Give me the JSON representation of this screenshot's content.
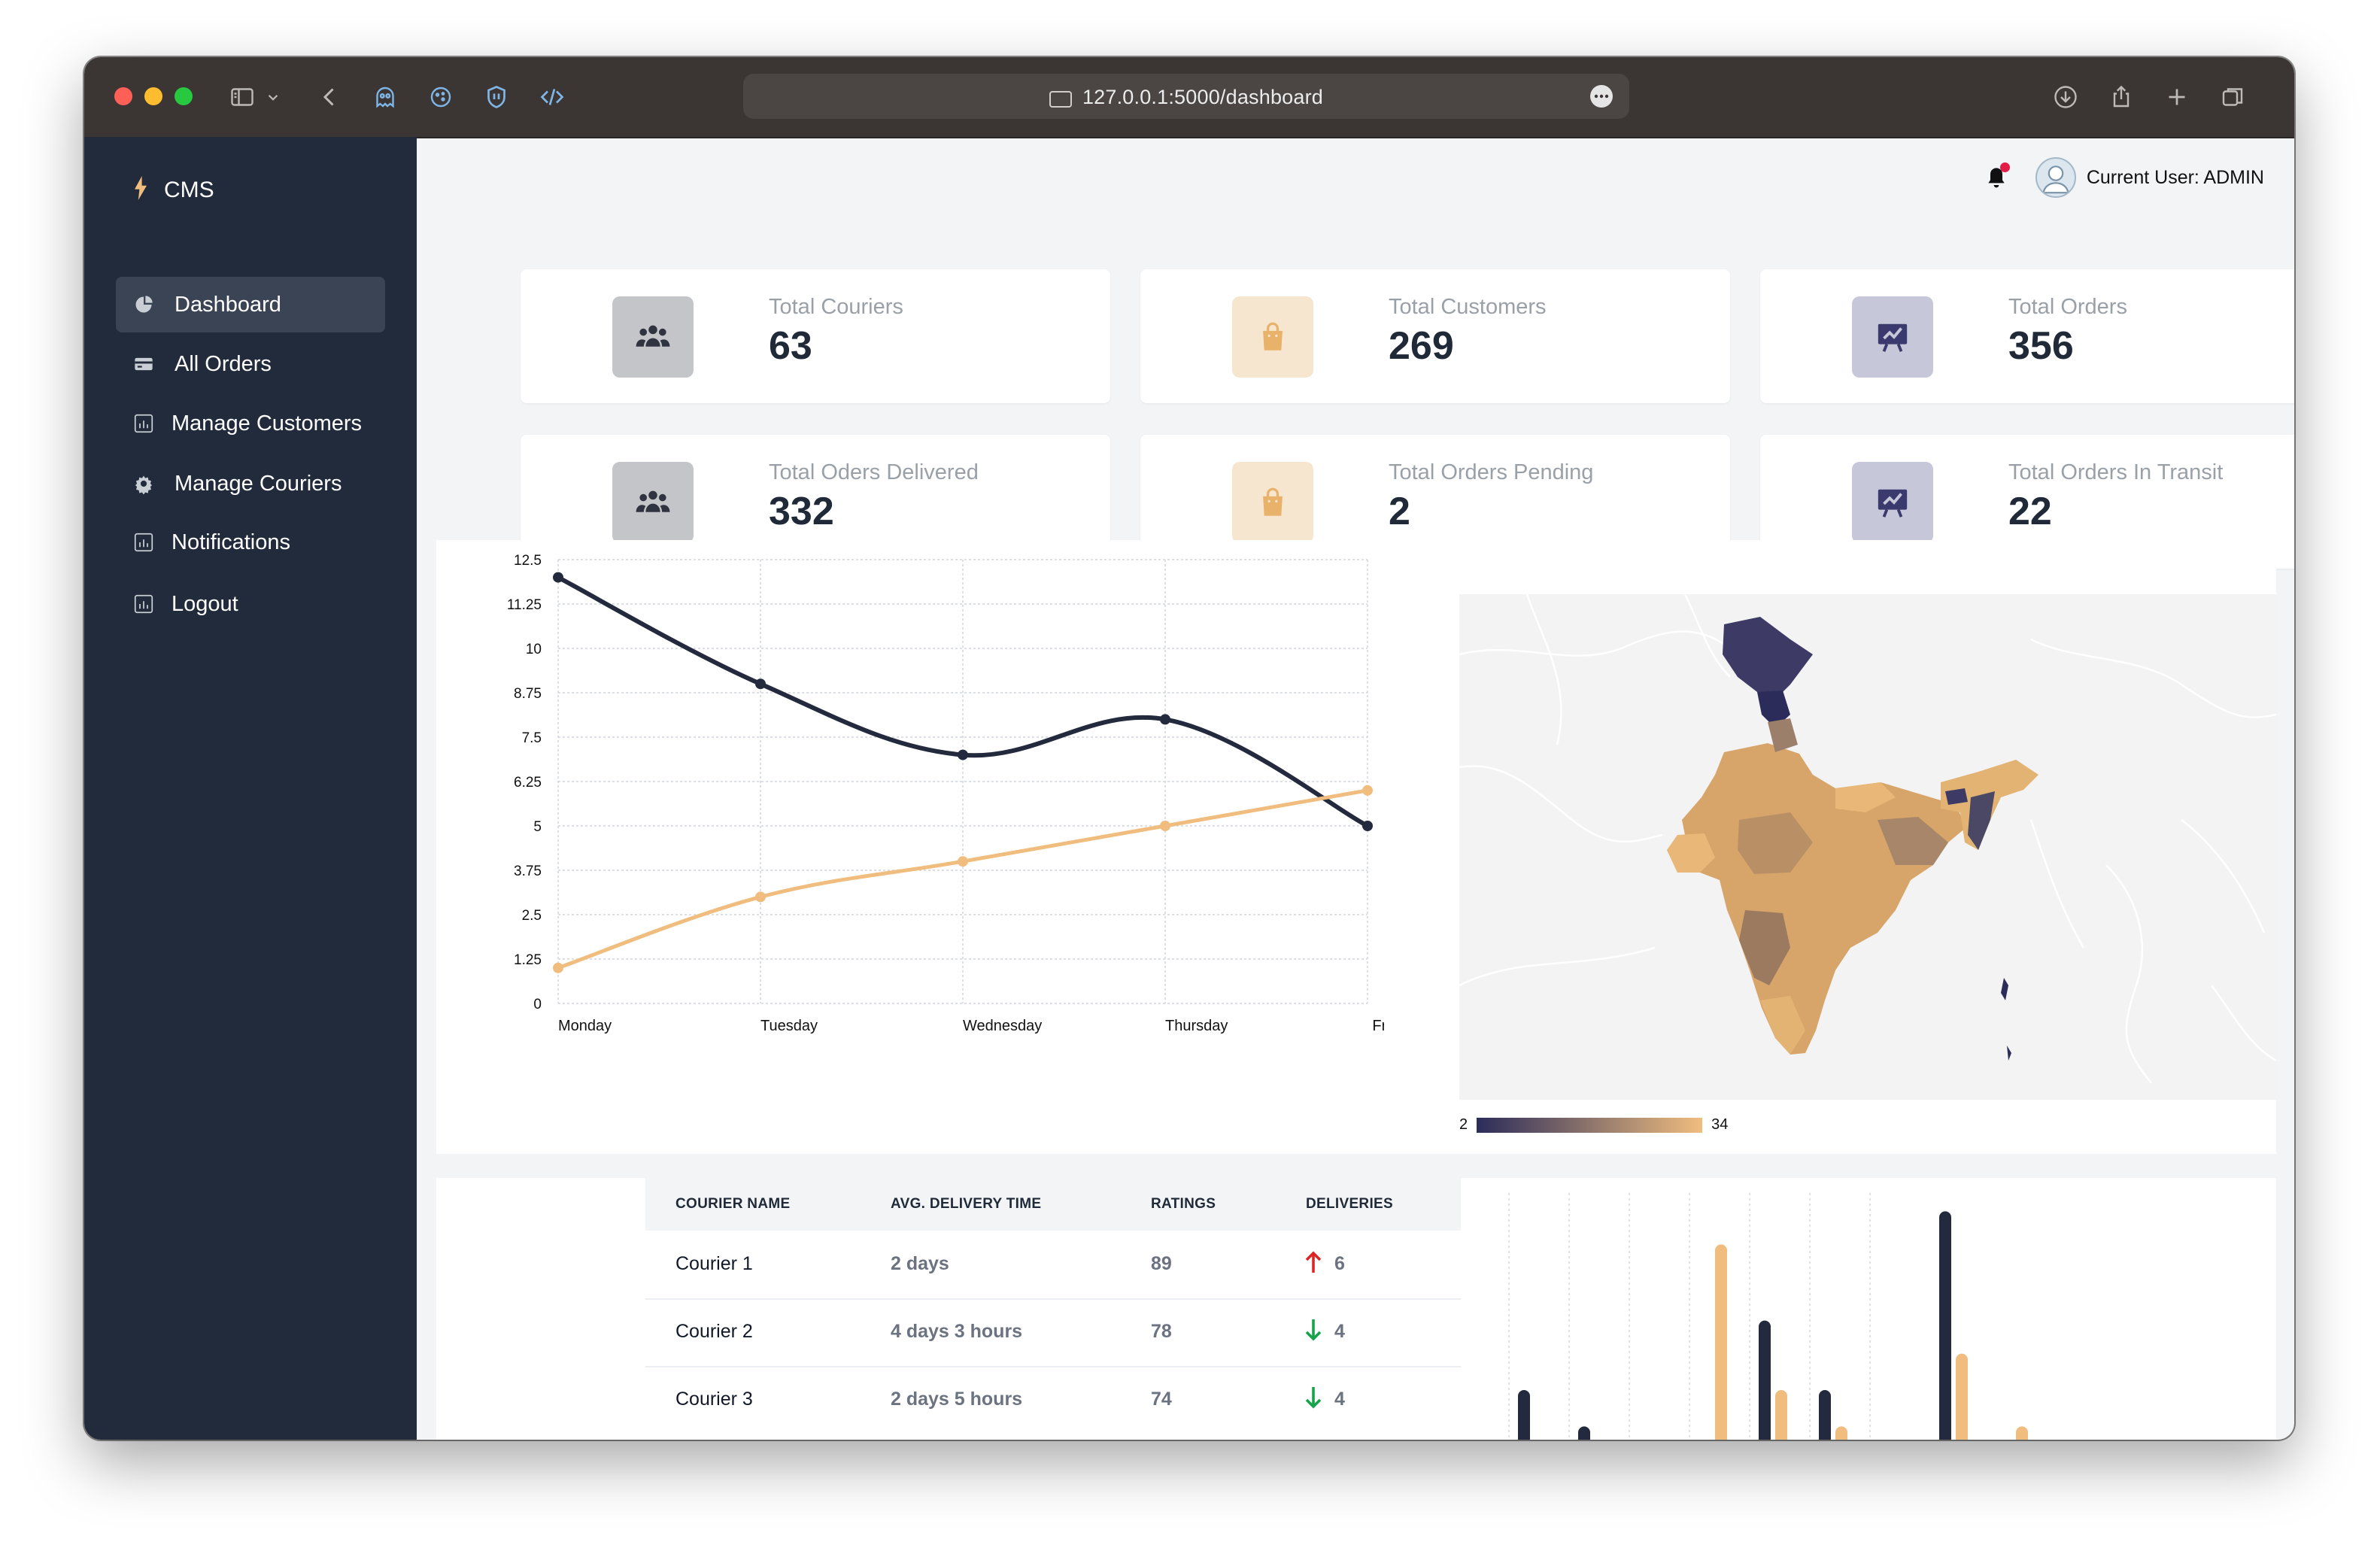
{
  "browser": {
    "url": "127.0.0.1:5000/dashboard"
  },
  "sidebar": {
    "brand": "CMS",
    "items": [
      {
        "label": "Dashboard",
        "icon": "pie-chart-icon",
        "active": true
      },
      {
        "label": "All Orders",
        "icon": "credit-card-icon"
      },
      {
        "label": "Manage Customers",
        "icon": "bar-chart-icon"
      },
      {
        "label": "Manage Couriers",
        "icon": "gear-icon"
      },
      {
        "label": "Notifications",
        "icon": "bar-chart-icon"
      },
      {
        "label": "Logout",
        "icon": "bar-chart-icon"
      }
    ]
  },
  "header": {
    "user_label": "Current User: ADMIN",
    "bell_icon": "bell-icon",
    "notification_dot_color": "#e11d48"
  },
  "stats": [
    {
      "label": "Total Couriers",
      "value": "63",
      "icon": "users-icon",
      "box_color": "#c4c5c8",
      "icon_color": "#2f3440"
    },
    {
      "label": "Total Customers",
      "value": "269",
      "icon": "shopping-bag-icon",
      "box_color": "#f7e6cf",
      "icon_color": "#e9b26a"
    },
    {
      "label": "Total Orders",
      "value": "356",
      "icon": "presentation-chart-icon",
      "box_color": "#c6c7d9",
      "icon_color": "#3b3a6e"
    },
    {
      "label": "Total Oders Delivered",
      "value": "332",
      "icon": "users-icon",
      "box_color": "#c4c5c8",
      "icon_color": "#2f3440"
    },
    {
      "label": "Total Orders Pending",
      "value": "2",
      "icon": "shopping-bag-icon",
      "box_color": "#f7e6cf",
      "icon_color": "#e9b26a"
    },
    {
      "label": "Total Orders In Transit",
      "value": "22",
      "icon": "presentation-chart-icon",
      "box_color": "#c6c7d9",
      "icon_color": "#3b3a6e"
    }
  ],
  "chart_data": [
    {
      "type": "line",
      "categories": [
        "Monday",
        "Tuesday",
        "Wednesday",
        "Thursday",
        "Friday"
      ],
      "yticks": [
        "0",
        "1.25",
        "2.5",
        "3.75",
        "5",
        "6.25",
        "7.5",
        "8.75",
        "10",
        "11.25",
        "12.5"
      ],
      "ylim": [
        0,
        12.5
      ],
      "grid": true,
      "smooth": true,
      "series": [
        {
          "values": [
            12,
            9,
            7,
            8,
            5
          ],
          "color": "#232a3d"
        },
        {
          "values": [
            1,
            3,
            4,
            5,
            6
          ],
          "color": "#f0bd7e"
        }
      ]
    },
    {
      "type": "heatmap",
      "subtype": "choropleth-map",
      "region": "India states",
      "color_range": [
        "#2b2c5a",
        "#f0bd7e"
      ],
      "legend_min": "2",
      "legend_max": "34"
    },
    {
      "type": "bar",
      "grid": true,
      "series": [
        {
          "values": [
            30,
            8,
            0,
            0,
            72,
            30,
            0,
            138
          ],
          "color": "#232a3d"
        },
        {
          "values": [
            0,
            0,
            0,
            118,
            30,
            8,
            0,
            52,
            8
          ],
          "color": "#f0bd7e"
        }
      ]
    }
  ],
  "table": {
    "headers": [
      "COURIER NAME",
      "AVG. DELIVERY TIME",
      "RATINGS",
      "DELIVERIES"
    ],
    "rows": [
      {
        "name": "Courier 1",
        "time": "2 days",
        "rating": "89",
        "trend": "up",
        "deliveries": "6"
      },
      {
        "name": "Courier 2",
        "time": "4 days 3 hours",
        "rating": "78",
        "trend": "down",
        "deliveries": "4"
      },
      {
        "name": "Courier 3",
        "time": "2 days 5 hours",
        "rating": "74",
        "trend": "down",
        "deliveries": "4"
      }
    ],
    "trend_colors": {
      "up": "#dc2626",
      "down": "#16a34a"
    }
  }
}
